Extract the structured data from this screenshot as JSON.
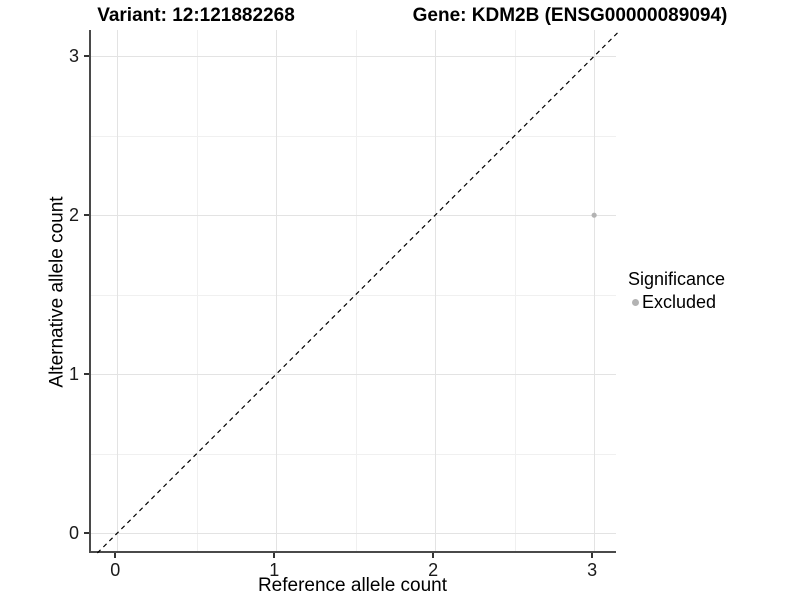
{
  "titles": {
    "variant": "Variant: 12:121882268",
    "gene": "Gene: KDM2B (ENSG00000089094)"
  },
  "axes": {
    "x_title": "Reference allele count",
    "y_title": "Alternative allele count"
  },
  "legend": {
    "title": "Significance",
    "items": [
      {
        "label": "Excluded",
        "color": "#b3b3b3"
      }
    ]
  },
  "chart_data": {
    "type": "scatter",
    "title": "Variant: 12:121882268 — Gene: KDM2B (ENSG00000089094)",
    "xlabel": "Reference allele count",
    "ylabel": "Alternative allele count",
    "xlim": [
      -0.165,
      3.15
    ],
    "ylim": [
      -0.125,
      3.165
    ],
    "x_ticks": [
      0,
      1,
      2,
      3
    ],
    "y_ticks": [
      0,
      1,
      2,
      3
    ],
    "x_minor_ticks": [
      0.5,
      1.5,
      2.5
    ],
    "y_minor_ticks": [
      0.5,
      1.5,
      2.5
    ],
    "grid": "major+minor",
    "legend_position": "right",
    "series": [
      {
        "name": "Excluded",
        "color": "#b3b3b3",
        "points": [
          {
            "x": 3,
            "y": 2
          }
        ],
        "point_radius": 2.6
      }
    ],
    "reference_line": {
      "kind": "identity",
      "slope": 1,
      "intercept": 0,
      "style": "dashed",
      "color": "#000000"
    }
  },
  "colors": {
    "background": "#ffffff",
    "grid_major": "#e3e3e3",
    "grid_minor": "#f0f0f0",
    "axis_line": "#4a4a4a",
    "tick": "#333333",
    "point": "#b3b3b3"
  }
}
